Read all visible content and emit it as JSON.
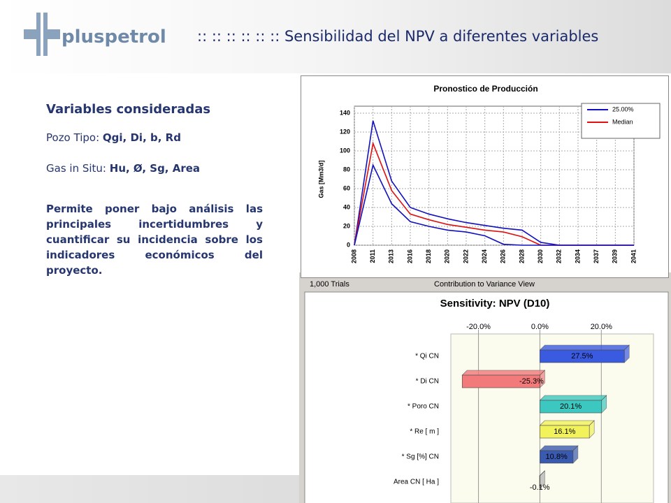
{
  "slide": {
    "logo": "pluspetrol",
    "title": ":: :: :: :: :: :: Sensibilidad del NPV a diferentes variables",
    "heading": "Variables consideradas",
    "lines": [
      {
        "label": "Pozo Tipo:",
        "value": "Qgi, Di, b, Rd"
      },
      {
        "label": "Gas in Situ:",
        "value": "Hu, Ø, Sg, Area"
      }
    ],
    "paragraph": "Permite poner bajo análisis las principales incertidumbres y cuantificar su incidencia sobre los indicadores económicos del proyecto."
  },
  "chart_data": [
    {
      "type": "line",
      "title": "Pronostico de Producción",
      "y_label": "Gas [Mm3/d]",
      "categories": [
        "2008",
        "2011",
        "2013",
        "2016",
        "2018",
        "2020",
        "2022",
        "2024",
        "2026",
        "2028",
        "2030",
        "2032",
        "2034",
        "2037",
        "2039",
        "2041"
      ],
      "series": [
        {
          "name": "25.00%",
          "color": "#1010c0",
          "values": [
            0,
            132,
            68,
            40,
            33,
            28,
            24,
            21,
            18,
            16,
            3,
            0,
            0,
            0,
            0,
            0
          ]
        },
        {
          "name": "Median",
          "color": "#e01010",
          "values": [
            0,
            108,
            58,
            33,
            27,
            22,
            19,
            16,
            14,
            9,
            0,
            0,
            0,
            0,
            0,
            0
          ]
        },
        {
          "color": "#1010c0",
          "values": [
            0,
            85,
            44,
            25,
            20,
            16,
            14,
            10,
            1,
            0,
            0,
            0,
            0,
            0,
            0,
            0
          ]
        }
      ],
      "ylim": [
        0,
        140
      ],
      "yticks": [
        0,
        20,
        40,
        60,
        80,
        100,
        120,
        140
      ],
      "grid": true,
      "legend": "top-right"
    },
    {
      "type": "hbar",
      "title": "Sensitivity: NPV (D10)",
      "trials": "1,000 Trials",
      "view": "Contribution to Variance View",
      "categories": [
        "* Qi CN",
        "* Di  CN",
        "* Poro CN",
        "* Re [ m ]",
        "* Sg [%] CN",
        "Area CN [ Ha ]"
      ],
      "values": [
        27.5,
        -25.3,
        20.1,
        16.1,
        10.8,
        -0.1
      ],
      "value_labels": [
        "27.5%",
        "-25.3%",
        "20.1%",
        "16.1%",
        "10.8%",
        "-0.1%"
      ],
      "colors": [
        "#3a5ae0",
        "#f27a7a",
        "#3cc8c0",
        "#f2f25a",
        "#3a5ab0",
        "#b0b0b0"
      ],
      "xlim": [
        -29,
        37
      ],
      "xticks": [
        {
          "value": -20,
          "label": "-20.0%"
        },
        {
          "value": 0,
          "label": "0.0%"
        },
        {
          "value": 20,
          "label": "20.0%"
        }
      ],
      "grid": true
    }
  ]
}
